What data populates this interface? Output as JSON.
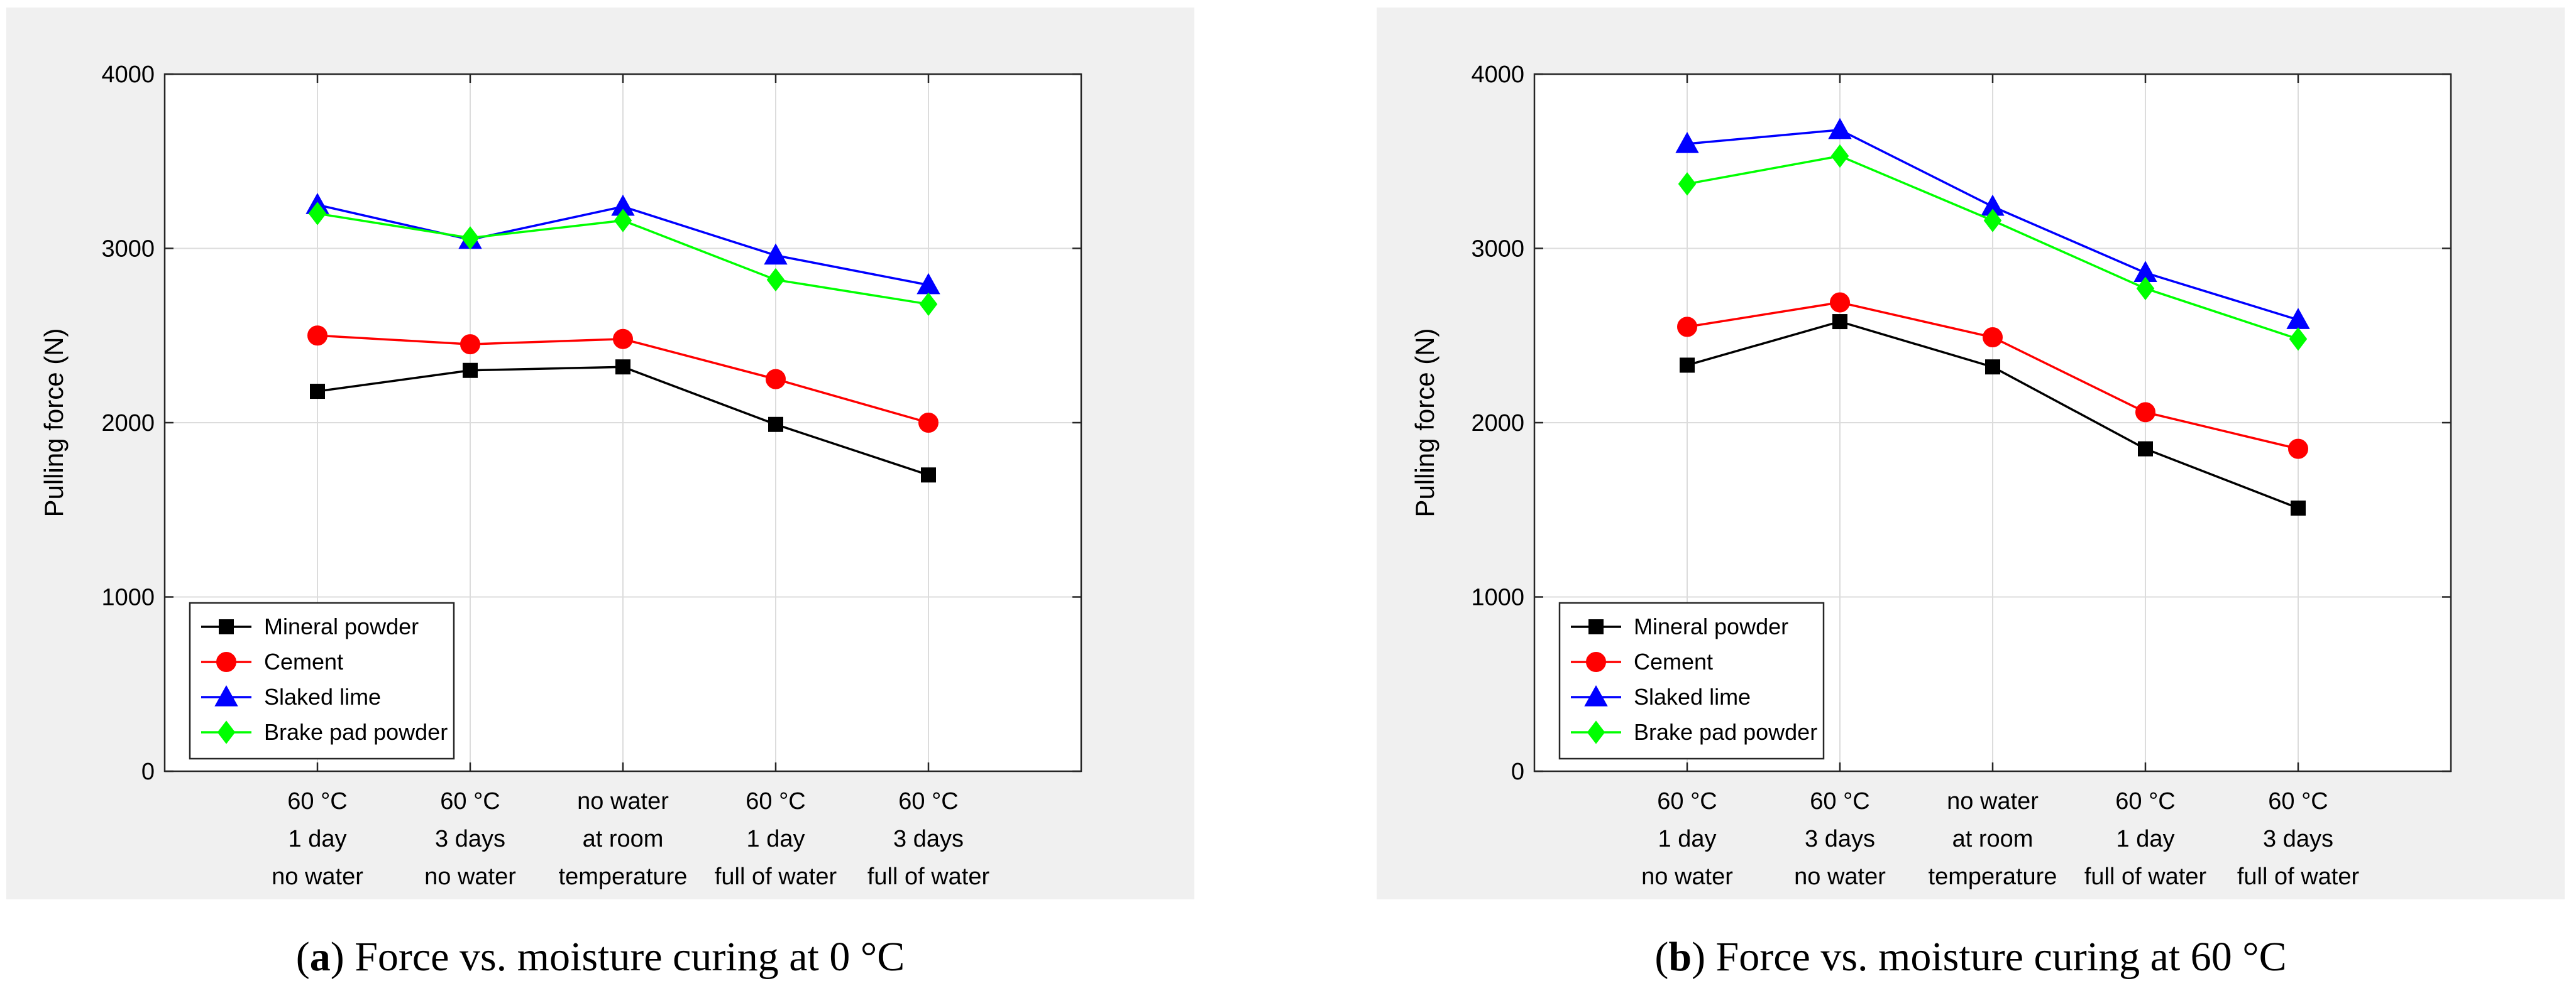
{
  "chart_data": [
    {
      "type": "line",
      "panel_label": "a",
      "caption": "Force vs. moisture curing at 0 °C",
      "ylabel": "Pulling force (N)",
      "xlabel": "",
      "ylim": [
        0,
        4000
      ],
      "yticks": [
        0,
        1000,
        2000,
        3000,
        4000
      ],
      "grid": true,
      "legend_position": "bottom-left",
      "categories": [
        [
          "60 °C",
          "1 day",
          "no water"
        ],
        [
          "60 °C",
          "3 days",
          "no water"
        ],
        [
          "no water",
          "at room",
          "temperature"
        ],
        [
          "60 °C",
          "1 day",
          "full of water"
        ],
        [
          "60 °C",
          "3 days",
          "full of water"
        ]
      ],
      "series": [
        {
          "name": "Mineral powder",
          "color": "#000000",
          "marker": "square",
          "values": [
            2180,
            2300,
            2320,
            1990,
            1700
          ]
        },
        {
          "name": "Cement",
          "color": "#ff0000",
          "marker": "circle",
          "values": [
            2500,
            2450,
            2480,
            2250,
            2000
          ]
        },
        {
          "name": "Slaked lime",
          "color": "#0000ff",
          "marker": "triangle",
          "values": [
            3250,
            3050,
            3240,
            2960,
            2790
          ]
        },
        {
          "name": "Brake pad powder",
          "color": "#00ff00",
          "marker": "diamond",
          "values": [
            3200,
            3060,
            3160,
            2820,
            2680
          ]
        }
      ]
    },
    {
      "type": "line",
      "panel_label": "b",
      "caption": "Force vs. moisture curing at 60 °C",
      "ylabel": "Pulling force (N)",
      "xlabel": "",
      "ylim": [
        0,
        4000
      ],
      "yticks": [
        0,
        1000,
        2000,
        3000,
        4000
      ],
      "grid": true,
      "legend_position": "bottom-left",
      "categories": [
        [
          "60 °C",
          "1 day",
          "no water"
        ],
        [
          "60 °C",
          "3 days",
          "no water"
        ],
        [
          "no water",
          "at room",
          "temperature"
        ],
        [
          "60 °C",
          "1 day",
          "full of water"
        ],
        [
          "60 °C",
          "3 days",
          "full of water"
        ]
      ],
      "series": [
        {
          "name": "Mineral powder",
          "color": "#000000",
          "marker": "square",
          "values": [
            2330,
            2580,
            2320,
            1850,
            1510
          ]
        },
        {
          "name": "Cement",
          "color": "#ff0000",
          "marker": "circle",
          "values": [
            2550,
            2690,
            2490,
            2060,
            1850
          ]
        },
        {
          "name": "Slaked lime",
          "color": "#0000ff",
          "marker": "triangle",
          "values": [
            3600,
            3680,
            3240,
            2860,
            2590
          ]
        },
        {
          "name": "Brake pad powder",
          "color": "#00ff00",
          "marker": "diamond",
          "values": [
            3370,
            3530,
            3160,
            2770,
            2480
          ]
        }
      ]
    }
  ]
}
